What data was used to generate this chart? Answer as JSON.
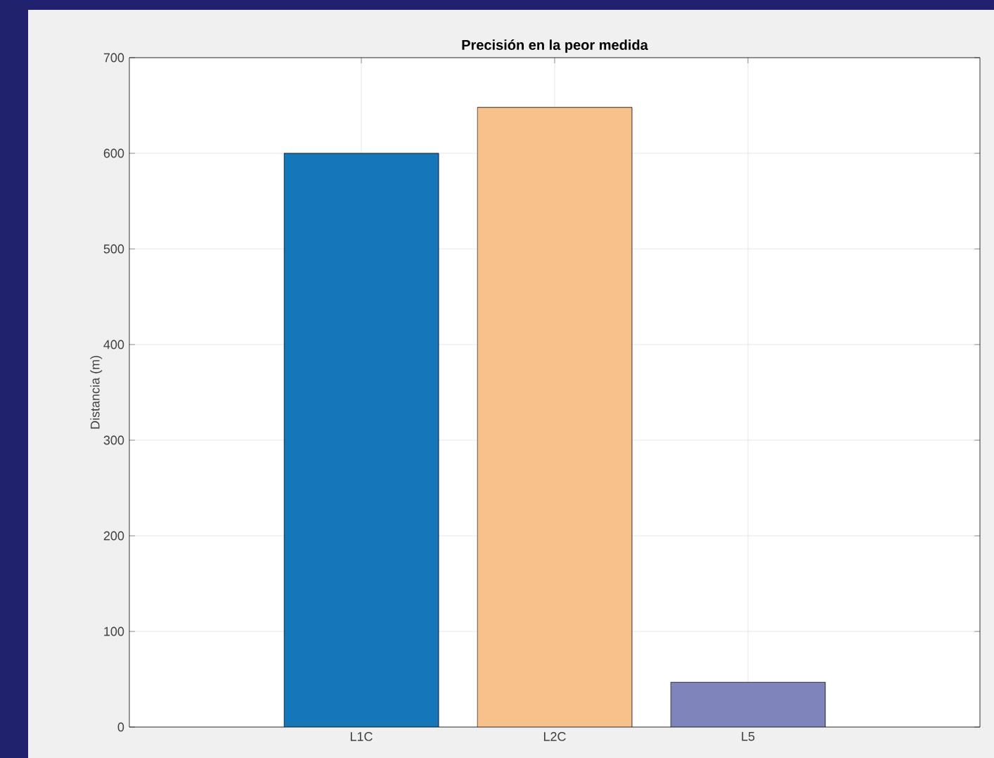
{
  "chart_data": {
    "type": "bar",
    "title": "Precisión en la peor medida",
    "ylabel": "Distancia (m)",
    "categories": [
      "L1C",
      "L2C",
      "L5"
    ],
    "values": [
      600,
      648,
      47
    ],
    "colors": [
      "#1577b8",
      "#f8c08a",
      "#7f85bb"
    ],
    "ylim": [
      0,
      700
    ],
    "yticks": [
      0,
      100,
      200,
      300,
      400,
      500,
      600,
      700
    ],
    "grid": true
  }
}
